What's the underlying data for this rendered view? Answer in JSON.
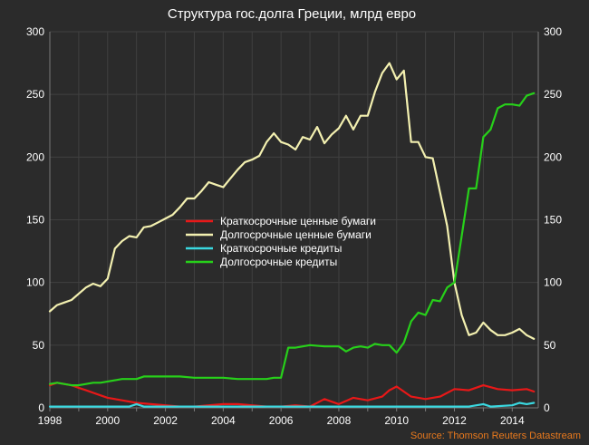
{
  "chart_data": {
    "type": "line",
    "title": "Структура гос.долга Греции, млрд евро",
    "source": "Source: Thomson Reuters Datastream",
    "xlim": [
      1998,
      2014.9
    ],
    "ylim": [
      0,
      300
    ],
    "x_ticks": [
      1998,
      2000,
      2002,
      2004,
      2006,
      2008,
      2010,
      2012,
      2014
    ],
    "y_ticks": [
      0,
      50,
      100,
      150,
      200,
      250,
      300
    ],
    "grid": true,
    "legend_position": "center",
    "series": [
      {
        "name": "Краткосрочные ценные бумаги",
        "color": "#e81818",
        "x": [
          1998,
          1998.25,
          1998.5,
          1998.75,
          1999,
          1999.25,
          1999.5,
          1999.75,
          2000,
          2000.5,
          2001,
          2001.5,
          2002,
          2002.5,
          2003,
          2003.5,
          2004,
          2004.5,
          2005,
          2005.5,
          2006,
          2006.5,
          2007,
          2007.5,
          2008,
          2008.5,
          2009,
          2009.5,
          2009.75,
          2010,
          2010.5,
          2011,
          2011.5,
          2012,
          2012.5,
          2013,
          2013.5,
          2014,
          2014.5,
          2014.75
        ],
        "y": [
          18,
          20,
          19,
          18,
          16,
          14,
          12,
          10,
          8,
          6,
          4,
          3,
          2,
          1,
          1,
          2,
          3,
          3,
          2,
          1,
          1,
          2,
          1,
          7,
          3,
          8,
          6,
          9,
          14,
          17,
          9,
          7,
          9,
          15,
          14,
          18,
          15,
          14,
          15,
          13
        ],
        "values": [
          18,
          20,
          19,
          18,
          16,
          14,
          12,
          10,
          8,
          6,
          4,
          3,
          2,
          1,
          1,
          2,
          3,
          3,
          2,
          1,
          1,
          2,
          1,
          7,
          3,
          8,
          6,
          9,
          14,
          17,
          9,
          7,
          9,
          15,
          14,
          18,
          15,
          14,
          15,
          13
        ]
      },
      {
        "name": "Долгосрочные ценные бумаги",
        "color": "#f3f0b0",
        "x": [
          1998,
          1998.25,
          1998.5,
          1998.75,
          1999,
          1999.25,
          1999.5,
          1999.75,
          2000,
          2000.25,
          2000.5,
          2000.75,
          2001,
          2001.25,
          2001.5,
          2001.75,
          2002,
          2002.25,
          2002.5,
          2002.75,
          2003,
          2003.25,
          2003.5,
          2003.75,
          2004,
          2004.25,
          2004.5,
          2004.75,
          2005,
          2005.25,
          2005.5,
          2005.75,
          2006,
          2006.25,
          2006.5,
          2006.75,
          2007,
          2007.25,
          2007.5,
          2007.75,
          2008,
          2008.25,
          2008.5,
          2008.75,
          2009,
          2009.25,
          2009.5,
          2009.75,
          2010,
          2010.25,
          2010.5,
          2010.75,
          2011,
          2011.25,
          2011.5,
          2011.75,
          2012,
          2012.25,
          2012.5,
          2012.75,
          2013,
          2013.25,
          2013.5,
          2013.75,
          2014,
          2014.25,
          2014.5,
          2014.75
        ],
        "y": [
          77,
          82,
          84,
          86,
          91,
          96,
          99,
          97,
          103,
          127,
          133,
          137,
          136,
          144,
          145,
          148,
          151,
          154,
          160,
          167,
          167,
          173,
          180,
          178,
          176,
          183,
          190,
          196,
          198,
          201,
          212,
          219,
          212,
          210,
          206,
          216,
          214,
          224,
          211,
          218,
          223,
          233,
          222,
          233,
          233,
          252,
          267,
          275,
          262,
          269,
          212,
          212,
          200,
          199,
          172,
          145,
          100,
          74,
          58,
          60,
          68,
          62,
          58,
          58,
          60,
          63,
          58,
          55
        ],
        "values": [
          77,
          82,
          84,
          86,
          91,
          96,
          99,
          97,
          103,
          127,
          133,
          137,
          136,
          144,
          145,
          148,
          151,
          154,
          160,
          167,
          167,
          173,
          180,
          178,
          176,
          183,
          190,
          196,
          198,
          201,
          212,
          219,
          212,
          210,
          206,
          216,
          214,
          224,
          211,
          218,
          223,
          233,
          222,
          233,
          233,
          252,
          267,
          275,
          262,
          269,
          212,
          212,
          200,
          199,
          172,
          145,
          100,
          74,
          58,
          60,
          68,
          62,
          58,
          58,
          60,
          63,
          58,
          55
        ]
      },
      {
        "name": "Краткосрочные кредиты",
        "color": "#3ad8e0",
        "x": [
          1998,
          1999,
          2000,
          2000.75,
          2001,
          2001.25,
          2002,
          2003,
          2004,
          2005,
          2006,
          2007,
          2008,
          2009,
          2010,
          2011,
          2012,
          2012.5,
          2013,
          2013.25,
          2014,
          2014.25,
          2014.5,
          2014.75
        ],
        "y": [
          1,
          1,
          1,
          1,
          3,
          1,
          1,
          1,
          1,
          1,
          1,
          1,
          1,
          1,
          1,
          1,
          1,
          1,
          3,
          1,
          2,
          4,
          3,
          4
        ],
        "values": [
          1,
          1,
          1,
          1,
          3,
          1,
          1,
          1,
          1,
          1,
          1,
          1,
          1,
          1,
          1,
          1,
          1,
          1,
          3,
          1,
          2,
          4,
          3,
          4
        ]
      },
      {
        "name": "Долгосрочные кредиты",
        "color": "#27d01a",
        "x": [
          1998,
          1998.25,
          1998.5,
          1998.75,
          1999,
          1999.25,
          1999.5,
          1999.75,
          2000,
          2000.25,
          2000.5,
          2000.75,
          2001,
          2001.25,
          2001.5,
          2002,
          2002.5,
          2003,
          2003.5,
          2004,
          2004.5,
          2005,
          2005.5,
          2005.75,
          2006,
          2006.25,
          2006.5,
          2006.75,
          2007,
          2007.5,
          2008,
          2008.25,
          2008.5,
          2008.75,
          2009,
          2009.25,
          2009.5,
          2009.75,
          2010,
          2010.25,
          2010.5,
          2010.75,
          2011,
          2011.25,
          2011.5,
          2011.75,
          2012,
          2012.25,
          2012.5,
          2012.75,
          2013,
          2013.25,
          2013.5,
          2013.75,
          2014,
          2014.25,
          2014.5,
          2014.75
        ],
        "y": [
          19,
          20,
          19,
          18,
          18,
          19,
          20,
          20,
          21,
          22,
          23,
          23,
          23,
          25,
          25,
          25,
          25,
          24,
          24,
          24,
          23,
          23,
          23,
          24,
          24,
          48,
          48,
          49,
          50,
          49,
          49,
          45,
          48,
          49,
          48,
          51,
          50,
          50,
          44,
          52,
          69,
          76,
          74,
          86,
          85,
          96,
          100,
          137,
          175,
          175,
          216,
          222,
          239,
          242,
          242,
          241,
          249,
          251
        ],
        "values": [
          19,
          20,
          19,
          18,
          18,
          19,
          20,
          20,
          21,
          22,
          23,
          23,
          23,
          25,
          25,
          25,
          25,
          24,
          24,
          24,
          23,
          23,
          23,
          24,
          24,
          48,
          48,
          49,
          50,
          49,
          49,
          45,
          48,
          49,
          48,
          51,
          50,
          50,
          44,
          52,
          69,
          76,
          74,
          86,
          85,
          96,
          100,
          137,
          175,
          175,
          216,
          222,
          239,
          242,
          242,
          241,
          249,
          251
        ]
      }
    ]
  },
  "colors": {
    "background": "#2b2b2b",
    "grid": "#404040",
    "axis": "#7a7a7a",
    "text": "#ffffff",
    "source": "#e8791d"
  }
}
